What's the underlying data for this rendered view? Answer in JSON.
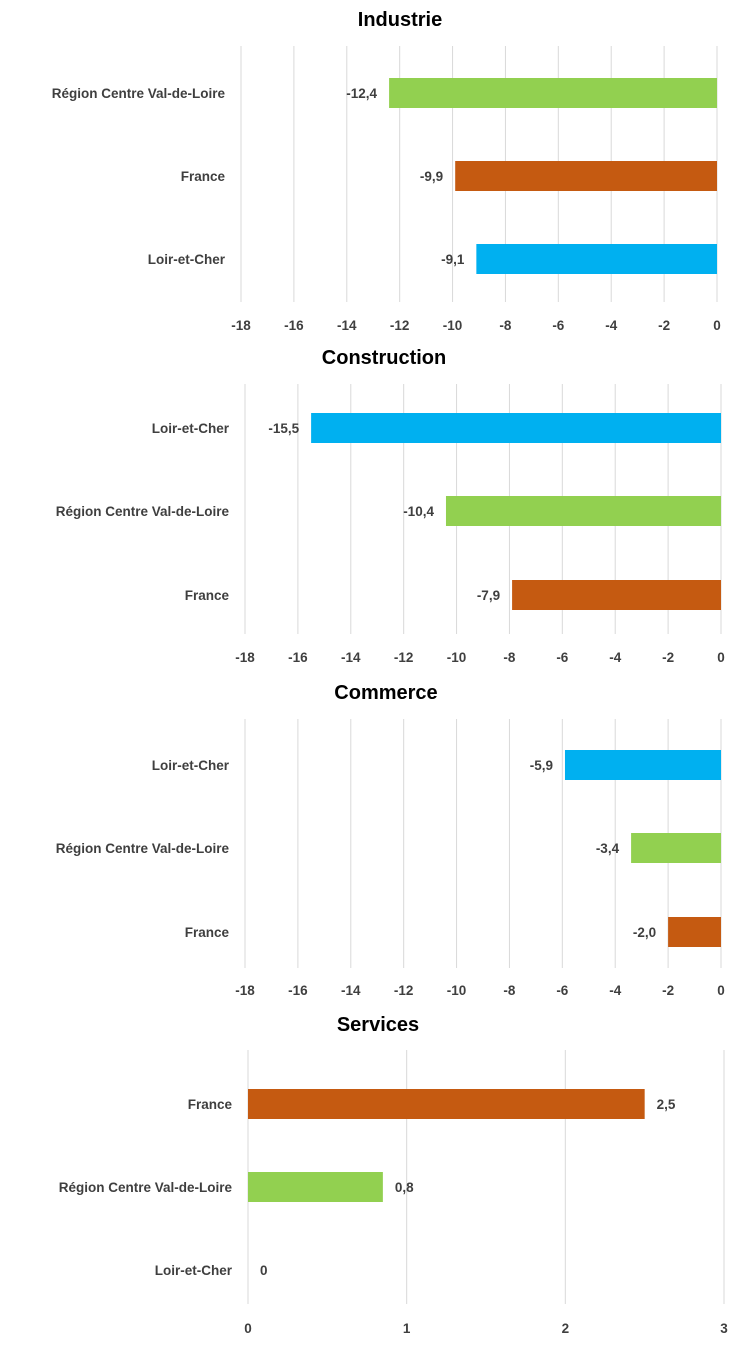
{
  "colors": {
    "Loir-et-Cher": "#00b0f0",
    "France": "#c55a11",
    "Région Centre Val-de-Loire": "#92d050"
  },
  "chart_data": [
    {
      "type": "bar",
      "orientation": "horizontal",
      "title": "Industrie",
      "categories": [
        "Région Centre Val-de-Loire",
        "France",
        "Loir-et-Cher"
      ],
      "values": [
        -12.4,
        -9.9,
        -9.1
      ],
      "value_labels": [
        "-12,4",
        "-9,9",
        "-9,1"
      ],
      "xlim": [
        -18,
        0
      ],
      "ticks": [
        "-18",
        "-16",
        "-14",
        "-12",
        "-10",
        "-8",
        "-6",
        "-4",
        "-2",
        "0"
      ],
      "grid": true
    },
    {
      "type": "bar",
      "orientation": "horizontal",
      "title": "Construction",
      "categories": [
        "Loir-et-Cher",
        "Région Centre Val-de-Loire",
        "France"
      ],
      "values": [
        -15.5,
        -10.4,
        -7.9
      ],
      "value_labels": [
        "-15,5",
        "-10,4",
        "-7,9"
      ],
      "xlim": [
        -18,
        0
      ],
      "ticks": [
        "-18",
        "-16",
        "-14",
        "-12",
        "-10",
        "-8",
        "-6",
        "-4",
        "-2",
        "0"
      ],
      "grid": true
    },
    {
      "type": "bar",
      "orientation": "horizontal",
      "title": "Commerce",
      "categories": [
        "Loir-et-Cher",
        "Région Centre Val-de-Loire",
        "France"
      ],
      "values": [
        -5.9,
        -3.4,
        -2.0
      ],
      "value_labels": [
        "-5,9",
        "-3,4",
        "-2,0"
      ],
      "xlim": [
        -18,
        0
      ],
      "ticks": [
        "-18",
        "-16",
        "-14",
        "-12",
        "-10",
        "-8",
        "-6",
        "-4",
        "-2",
        "0"
      ],
      "grid": true
    },
    {
      "type": "bar",
      "orientation": "horizontal",
      "title": "Services",
      "categories": [
        "France",
        "Région Centre Val-de-Loire",
        "Loir-et-Cher"
      ],
      "values": [
        2.5,
        0.85,
        0
      ],
      "value_labels": [
        "2,5",
        "0,8",
        "0"
      ],
      "xlim": [
        0,
        3
      ],
      "ticks": [
        "0",
        "1",
        "2",
        "3"
      ],
      "grid": true
    }
  ]
}
